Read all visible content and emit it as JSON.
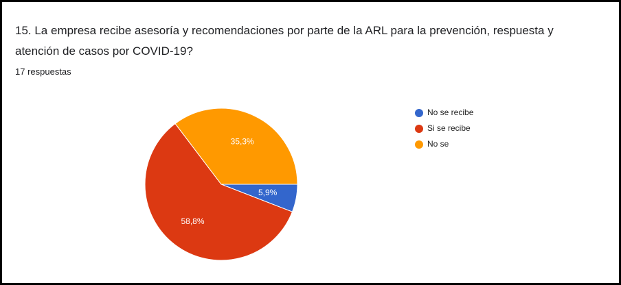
{
  "chart_data": {
    "type": "pie",
    "title": "15. La empresa recibe asesoría y recomendaciones por parte de la ARL para la prevención, respuesta y atención de casos por COVID-19?",
    "subtitle": "17 respuestas",
    "categories": [
      "No se recibe",
      "Si se recibe",
      "No se"
    ],
    "values": [
      5.9,
      58.8,
      35.3
    ],
    "value_labels": [
      "5,9%",
      "58,8%",
      "35,3%"
    ],
    "colors": [
      "#3366cc",
      "#dc3912",
      "#ff9900"
    ],
    "legend": "right"
  }
}
